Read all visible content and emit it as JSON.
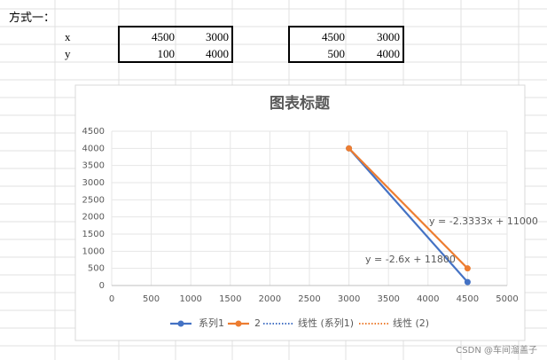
{
  "sheet": {
    "title": "方式一：",
    "row_labels": [
      "x",
      "y"
    ],
    "tables": [
      [
        [
          4500,
          3000
        ],
        [
          100,
          4000
        ]
      ],
      [
        [
          4500,
          3000
        ],
        [
          500,
          4000
        ]
      ]
    ]
  },
  "chart_data": {
    "type": "scatter",
    "title": "图表标题",
    "series": [
      {
        "name": "系列1",
        "color": "#4472c4",
        "x": [
          4500,
          3000
        ],
        "values": [
          100,
          4000
        ]
      },
      {
        "name": "2",
        "color": "#ed7d31",
        "x": [
          4500,
          3000
        ],
        "values": [
          500,
          4000
        ]
      }
    ],
    "trendlines": [
      {
        "name": "线性 (系列1)",
        "color": "#4472c4"
      },
      {
        "name": "线性 (2)",
        "color": "#ed7d31"
      }
    ],
    "annotations": [
      "y = -2.3333x + 11000",
      "y = -2.6x + 11800"
    ],
    "xlim": [
      0,
      5000
    ],
    "xticks": [
      0,
      500,
      1000,
      1500,
      2000,
      2500,
      3000,
      3500,
      4000,
      4500,
      5000
    ],
    "ylim": [
      0,
      4500
    ],
    "yticks": [
      0,
      500,
      1000,
      1500,
      2000,
      2500,
      3000,
      3500,
      4000,
      4500
    ],
    "grid": true
  },
  "watermark": "CSDN @车间溜盖子"
}
